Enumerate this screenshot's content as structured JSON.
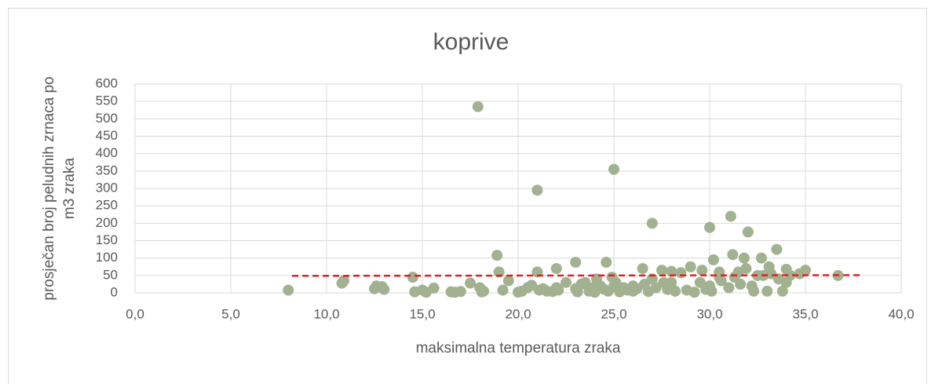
{
  "chart_data": {
    "type": "scatter",
    "title": "koprive",
    "xlabel": "maksimalna temperatura zraka",
    "ylabel": [
      "prosječan broj peludnih zrnaca po",
      "m3 zraka"
    ],
    "color": "#a2b18f",
    "x": [
      8,
      10.8,
      10.9,
      12.5,
      12.6,
      12.9,
      13,
      14.5,
      14.6,
      15,
      15.2,
      15.6,
      16.5,
      16.7,
      17,
      17.5,
      17.9,
      18,
      18.1,
      18.2,
      18.9,
      19,
      19.2,
      19.5,
      20,
      20.2,
      20.5,
      20.7,
      21,
      21,
      21.1,
      21.3,
      21.5,
      21.8,
      22,
      22,
      22.1,
      23,
      23,
      23.1,
      23.3,
      23.5,
      23.7,
      23.9,
      24,
      24.1,
      24.3,
      24.5,
      24.6,
      24.7,
      24.9,
      25,
      25,
      25.1,
      25.3,
      25.5,
      25.7,
      26,
      26.2,
      26.5,
      26.6,
      26.8,
      27,
      27,
      27.2,
      27.5,
      27.6,
      27.8,
      28,
      28.2,
      28.5,
      28.8,
      29,
      29.2,
      29.5,
      29.6,
      29.8,
      30,
      30,
      30.1,
      30.2,
      30.5,
      30.6,
      31,
      31.1,
      31.2,
      31.3,
      31.5,
      31.6,
      31.8,
      31.9,
      32,
      32.2,
      32.3,
      32.7,
      32.8,
      33,
      33.1,
      33.2,
      33.5,
      33.6,
      33.8,
      34,
      34.2,
      34.7,
      35,
      36.7,
      26,
      22.5,
      28,
      30.5,
      34,
      32.5
    ],
    "values": [
      8,
      28,
      35,
      12,
      20,
      18,
      10,
      45,
      3,
      8,
      2,
      14,
      3,
      2,
      4,
      28,
      535,
      15,
      3,
      5,
      108,
      60,
      8,
      35,
      2,
      5,
      15,
      22,
      295,
      60,
      8,
      12,
      5,
      4,
      70,
      15,
      8,
      88,
      12,
      3,
      25,
      30,
      5,
      15,
      2,
      40,
      20,
      10,
      88,
      5,
      45,
      355,
      20,
      30,
      3,
      15,
      8,
      5,
      12,
      70,
      25,
      4,
      200,
      40,
      15,
      65,
      30,
      10,
      62,
      5,
      58,
      8,
      75,
      2,
      30,
      65,
      10,
      188,
      20,
      5,
      95,
      60,
      35,
      15,
      220,
      110,
      45,
      60,
      25,
      100,
      70,
      175,
      20,
      5,
      100,
      50,
      5,
      75,
      55,
      125,
      40,
      5,
      68,
      50,
      55,
      65,
      50,
      20,
      30,
      30,
      45,
      30,
      50
    ],
    "trendline": {
      "color": "#e02020",
      "x": [
        8.2,
        38
      ],
      "y": [
        49,
        51
      ]
    },
    "xlim": [
      0,
      40
    ],
    "xticks": [
      {
        "value": 0,
        "label": "0,0"
      },
      {
        "value": 5,
        "label": "5,0"
      },
      {
        "value": 10,
        "label": "10,0"
      },
      {
        "value": 15,
        "label": "15,0"
      },
      {
        "value": 20,
        "label": "20,0"
      },
      {
        "value": 25,
        "label": "25,0"
      },
      {
        "value": 30,
        "label": "30,0"
      },
      {
        "value": 35,
        "label": "35,0"
      },
      {
        "value": 40,
        "label": "40,0"
      }
    ],
    "ylim": [
      0,
      600
    ],
    "yticks": [
      0,
      50,
      100,
      150,
      200,
      250,
      300,
      350,
      400,
      450,
      500,
      550,
      600
    ],
    "grid": true
  }
}
